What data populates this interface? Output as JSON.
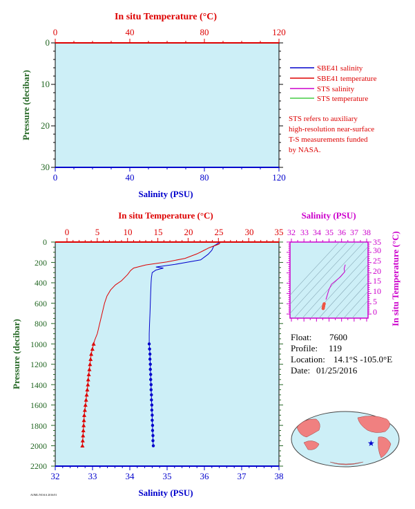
{
  "colors": {
    "red": "#dd0000",
    "blue": "#0000cc",
    "magenta": "#cc00cc",
    "green": "#44cc44",
    "dark_green": "#226622",
    "plot_bg": "#cdeff7"
  },
  "chart_data": [
    {
      "id": "surface",
      "type": "line",
      "top_axis": {
        "label": "In situ Temperature (°C)",
        "range": [
          0,
          120
        ],
        "ticks": [
          "0",
          "40",
          "80",
          "120"
        ]
      },
      "bottom_axis": {
        "label": "Salinity (PSU)",
        "range": [
          0,
          120
        ],
        "ticks": [
          "0",
          "40",
          "80",
          "120"
        ]
      },
      "left_axis": {
        "label": "Pressure (decibar)",
        "range": [
          0,
          30
        ],
        "inverted": true,
        "ticks": [
          "0",
          "10",
          "20",
          "30"
        ]
      },
      "series": []
    },
    {
      "id": "profile",
      "type": "line",
      "top_axis": {
        "label": "In situ Temperature (°C)",
        "range": [
          0,
          35
        ],
        "ticks": [
          "0",
          "5",
          "10",
          "15",
          "20",
          "25",
          "30",
          "35"
        ]
      },
      "bottom_axis": {
        "label": "Salinity (PSU)",
        "range": [
          32,
          38
        ],
        "ticks": [
          "32",
          "33",
          "34",
          "35",
          "36",
          "37",
          "38"
        ]
      },
      "left_axis": {
        "label": "Pressure (decibar)",
        "range": [
          0,
          2200
        ],
        "inverted": true,
        "ticks": [
          "0",
          "200",
          "400",
          "600",
          "800",
          "1000",
          "1200",
          "1400",
          "1600",
          "1800",
          "2000",
          "2200"
        ]
      },
      "series": [
        {
          "name": "SBE41 salinity",
          "color": "#0000cc",
          "points": [
            [
              36.4,
              5
            ],
            [
              36.25,
              40
            ],
            [
              36.2,
              80
            ],
            [
              36.1,
              120
            ],
            [
              35.9,
              175
            ],
            [
              35.2,
              220
            ],
            [
              34.7,
              245
            ],
            [
              34.9,
              255
            ],
            [
              34.7,
              275
            ],
            [
              34.6,
              300
            ],
            [
              34.58,
              350
            ],
            [
              34.57,
              400
            ],
            [
              34.56,
              500
            ],
            [
              34.55,
              600
            ],
            [
              34.54,
              700
            ],
            [
              34.53,
              800
            ],
            [
              34.52,
              900
            ],
            [
              34.52,
              1000
            ]
          ],
          "markers": [
            [
              34.52,
              1000
            ],
            [
              34.53,
              1050
            ],
            [
              34.54,
              1100
            ],
            [
              34.54,
              1150
            ],
            [
              34.55,
              1200
            ],
            [
              34.55,
              1250
            ],
            [
              34.56,
              1300
            ],
            [
              34.56,
              1350
            ],
            [
              34.57,
              1400
            ],
            [
              34.57,
              1450
            ],
            [
              34.58,
              1500
            ],
            [
              34.58,
              1550
            ],
            [
              34.59,
              1600
            ],
            [
              34.59,
              1650
            ],
            [
              34.6,
              1700
            ],
            [
              34.6,
              1750
            ],
            [
              34.61,
              1800
            ],
            [
              34.61,
              1850
            ],
            [
              34.62,
              1900
            ],
            [
              34.62,
              1950
            ],
            [
              34.63,
              2000
            ]
          ]
        },
        {
          "name": "SBE41 temperature",
          "color": "#dd0000",
          "points": [
            [
              25.3,
              5
            ],
            [
              25.1,
              20
            ],
            [
              23.5,
              55
            ],
            [
              22.5,
              85
            ],
            [
              21.5,
              115
            ],
            [
              19.5,
              160
            ],
            [
              16.5,
              195
            ],
            [
              13,
              225
            ],
            [
              11,
              255
            ],
            [
              10.5,
              280
            ],
            [
              10,
              320
            ],
            [
              9,
              380
            ],
            [
              8,
              420
            ],
            [
              7.2,
              470
            ],
            [
              6.6,
              530
            ],
            [
              6.2,
              600
            ],
            [
              5.8,
              700
            ],
            [
              5.4,
              800
            ],
            [
              5,
              900
            ],
            [
              4.6,
              960
            ],
            [
              4.4,
              1000
            ]
          ],
          "markers": [
            [
              4.4,
              1000
            ],
            [
              4.2,
              1050
            ],
            [
              4,
              1100
            ],
            [
              3.9,
              1150
            ],
            [
              3.8,
              1200
            ],
            [
              3.7,
              1250
            ],
            [
              3.6,
              1300
            ],
            [
              3.5,
              1350
            ],
            [
              3.45,
              1400
            ],
            [
              3.35,
              1450
            ],
            [
              3.25,
              1500
            ],
            [
              3.15,
              1550
            ],
            [
              3.05,
              1600
            ],
            [
              2.95,
              1650
            ],
            [
              2.85,
              1700
            ],
            [
              2.8,
              1750
            ],
            [
              2.75,
              1800
            ],
            [
              2.7,
              1850
            ],
            [
              2.65,
              1900
            ],
            [
              2.6,
              1950
            ],
            [
              2.55,
              2000
            ]
          ]
        }
      ]
    },
    {
      "id": "ts_diagram",
      "type": "scatter",
      "top_axis": {
        "label": "Salinity (PSU)",
        "range": [
          32,
          38
        ],
        "ticks": [
          "32",
          "33",
          "34",
          "35",
          "36",
          "37",
          "38"
        ]
      },
      "right_axis": {
        "label": "In situ Temperature (°C)",
        "range": [
          -2,
          35
        ],
        "ticks": [
          "0",
          "5",
          "10",
          "15",
          "20",
          "25",
          "30",
          "35"
        ]
      },
      "series": [
        {
          "name": "STS salinity",
          "color": "#cc00cc",
          "points": [
            [
              36.3,
              24
            ],
            [
              36.2,
              22
            ],
            [
              36.25,
              20.5
            ],
            [
              35.9,
              18
            ],
            [
              35.5,
              16
            ],
            [
              35.2,
              14.5
            ],
            [
              35,
              12
            ],
            [
              34.9,
              10
            ],
            [
              34.8,
              8
            ],
            [
              34.75,
              7
            ]
          ],
          "markers": [
            [
              34.62,
              5
            ],
            [
              34.6,
              4.8
            ],
            [
              34.59,
              4.6
            ],
            [
              34.58,
              4.4
            ],
            [
              34.58,
              4.2
            ],
            [
              34.57,
              4
            ],
            [
              34.57,
              3.8
            ],
            [
              34.56,
              3.6
            ],
            [
              34.56,
              3.5
            ],
            [
              34.55,
              3.4
            ],
            [
              34.55,
              3.2
            ],
            [
              34.55,
              3.05
            ],
            [
              34.54,
              2.95
            ],
            [
              34.54,
              2.85
            ],
            [
              34.53,
              2.75
            ],
            [
              34.53,
              2.65
            ]
          ]
        }
      ]
    }
  ],
  "legend": [
    {
      "label": "SBE41 salinity",
      "color": "#0000cc"
    },
    {
      "label": "SBE41 temperature",
      "color": "#dd0000"
    },
    {
      "label": "STS salinity",
      "color": "#cc00cc"
    },
    {
      "label": "STS temperature",
      "color": "#44cc44"
    }
  ],
  "note_lines": [
    "STS refers to auxiliary",
    "high-resolution near-surface",
    "T-S measurements funded",
    "by NASA."
  ],
  "float_info": [
    {
      "key": "Float:",
      "value": "7600"
    },
    {
      "key": "Profile:",
      "value": "119"
    },
    {
      "key": "Location:",
      "value": "14.1°S  -105.0°E"
    },
    {
      "key": "Date:",
      "value": "01/25/2016"
    }
  ],
  "footer_text": "AOML/NOAA 2016/01"
}
